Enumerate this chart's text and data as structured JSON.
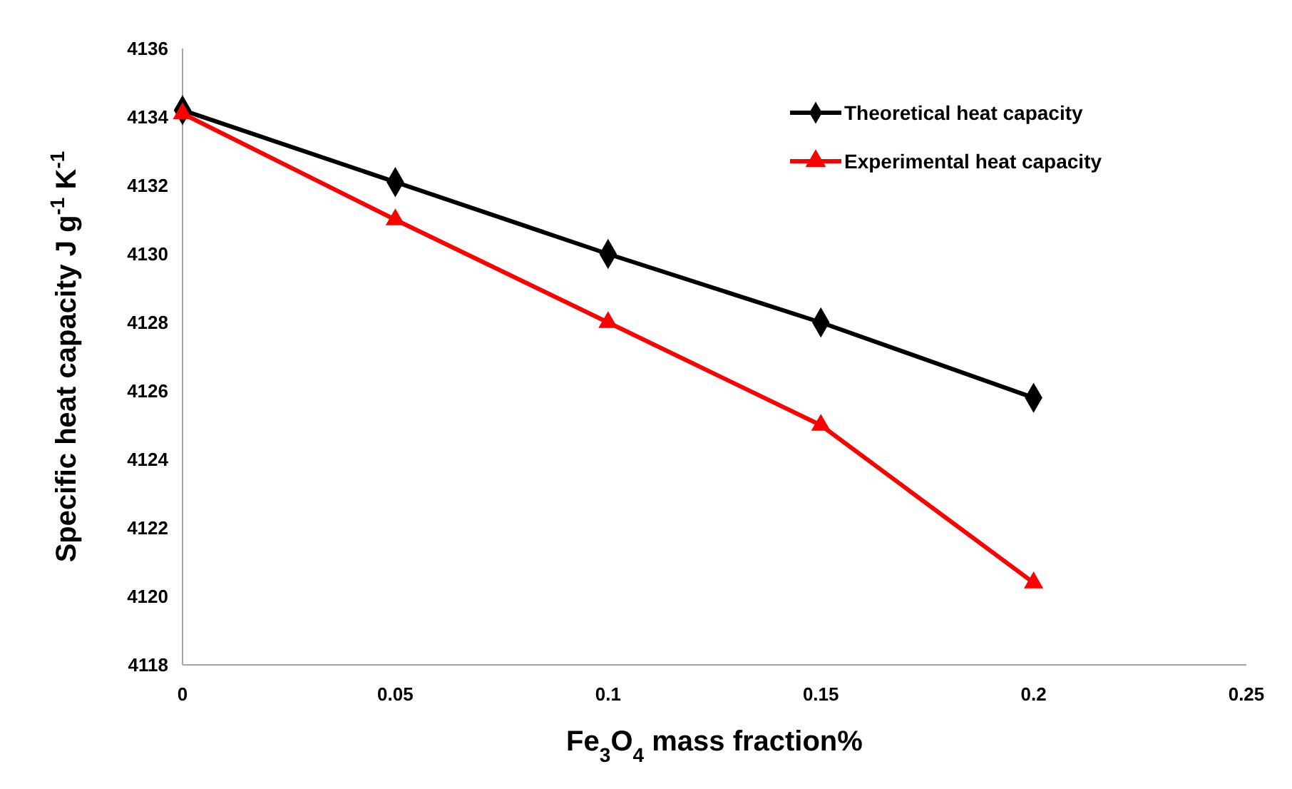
{
  "chart_data": {
    "type": "line",
    "xlabel": "Fe$_{3}$O$_{4}$ mass fraction%",
    "ylabel": "Specific heat capacity J g$^{-1}$ K$^{-1}$",
    "x": [
      0,
      0.05,
      0.1,
      0.15,
      0.2
    ],
    "series": [
      {
        "name": "Theoretical heat capacity",
        "color": "#000000",
        "marker": "diamond",
        "values": [
          4134.2,
          4132.1,
          4130.0,
          4128.0,
          4125.8
        ]
      },
      {
        "name": "Experimental heat capacity",
        "color": "#ff0000",
        "marker": "triangle",
        "values": [
          4134.1,
          4131.0,
          4128.0,
          4125.0,
          4120.4
        ]
      }
    ],
    "xlim": [
      0,
      0.25
    ],
    "xticks": [
      0,
      0.05,
      0.1,
      0.15,
      0.2,
      0.25
    ],
    "ylim": [
      4118,
      4136
    ],
    "yticks": [
      4118,
      4120,
      4122,
      4124,
      4126,
      4128,
      4130,
      4132,
      4134,
      4136
    ],
    "grid": false,
    "legend": "top right",
    "line_style": "solid"
  }
}
